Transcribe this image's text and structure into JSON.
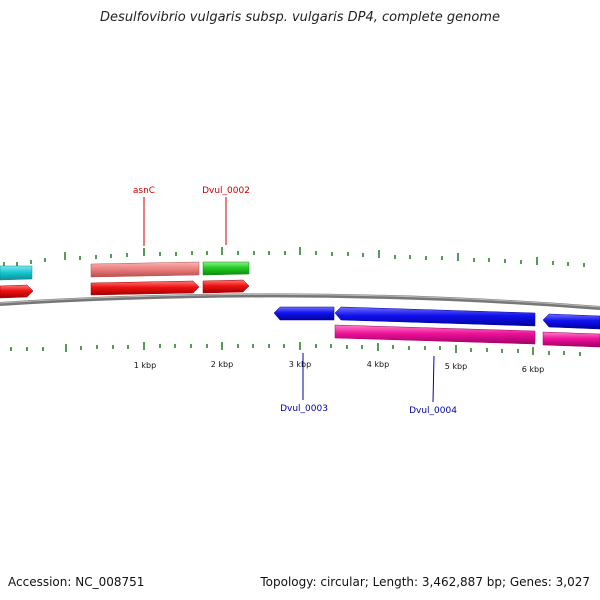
{
  "title": "Desulfovibrio vulgaris subsp. vulgaris DP4, complete genome",
  "accession": "Accession: NC_008751",
  "summary": "Topology: circular; Length: 3,462,887 bp; Genes: 3,027",
  "scale_labels": [
    "1 kbp",
    "2 kbp",
    "3 kbp",
    "4 kbp",
    "5 kbp",
    "6 kbp"
  ],
  "gene_labels": {
    "asnC": "asnC",
    "dvul_0002": "Dvul_0002",
    "dvul_0003": "Dvul_0003",
    "dvul_0004": "Dvul_0004"
  },
  "colors": {
    "backbone": "#777777",
    "tick": "#1a7a1a",
    "forward_label": "#cc0000",
    "reverse_label": "#0000aa",
    "cyan": "#19c8d2",
    "red": "#ee1111",
    "salmon": "#ee8080",
    "green": "#22cc22",
    "blue": "#1111ee",
    "magenta": "#ee1199"
  }
}
